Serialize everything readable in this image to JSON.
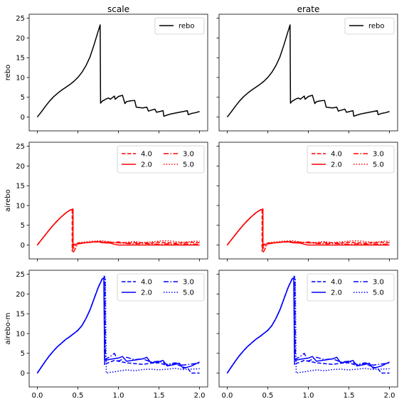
{
  "chart_data": {
    "type": "line",
    "column_titles": [
      "scale",
      "erate"
    ],
    "row_labels": [
      "rebo",
      "airebo",
      "airebo-m"
    ],
    "xlim": [
      -0.1,
      2.1
    ],
    "xticks": [
      0.0,
      0.5,
      1.0,
      1.5,
      2.0
    ],
    "xtick_labels": [
      "0.0",
      "0.5",
      "1.0",
      "1.5",
      "2.0"
    ],
    "ylim": [
      -3.5,
      26
    ],
    "yticks": [
      0,
      5,
      10,
      15,
      20,
      25
    ],
    "ytick_labels": [
      "0",
      "5",
      "10",
      "15",
      "20",
      "25"
    ],
    "grid": false,
    "legend_placement": "top-right",
    "colors": {
      "rebo": "#000000",
      "airebo": "#ff0000",
      "airebo-m": "#0000ff"
    },
    "rows": [
      {
        "label": "rebo",
        "color": "#000000",
        "legend_columns": 1,
        "series": [
          {
            "name": "rebo",
            "style": "solid",
            "x": [
              0.0,
              0.05,
              0.1,
              0.15,
              0.2,
              0.25,
              0.3,
              0.35,
              0.4,
              0.45,
              0.5,
              0.55,
              0.6,
              0.65,
              0.7,
              0.74,
              0.775,
              0.78,
              0.8,
              0.85,
              0.88,
              0.9,
              0.95,
              0.96,
              1.0,
              1.05,
              1.08,
              1.1,
              1.15,
              1.2,
              1.22,
              1.26,
              1.3,
              1.35,
              1.37,
              1.4,
              1.45,
              1.47,
              1.51,
              1.55,
              1.56,
              1.6,
              1.65,
              1.7,
              1.75,
              1.8,
              1.85,
              1.86,
              1.9,
              1.95,
              2.0
            ],
            "y": [
              0.0,
              1.3,
              2.7,
              4.0,
              5.1,
              6.0,
              6.8,
              7.5,
              8.2,
              9.0,
              10.0,
              11.3,
              13.0,
              15.2,
              18.3,
              21.0,
              23.3,
              3.5,
              4.0,
              4.6,
              4.8,
              4.5,
              5.3,
              4.5,
              5.2,
              5.5,
              3.4,
              3.9,
              4.1,
              4.2,
              2.5,
              2.4,
              2.3,
              2.5,
              1.5,
              1.7,
              2.0,
              1.2,
              1.4,
              1.6,
              0.2,
              0.5,
              0.8,
              1.0,
              1.2,
              1.4,
              1.6,
              0.6,
              0.9,
              1.1,
              1.4
            ]
          }
        ]
      },
      {
        "label": "airebo",
        "color": "#ff0000",
        "legend_columns": 2,
        "series": [
          {
            "name": "4.0",
            "style": "dashed",
            "x": [
              0.0,
              0.05,
              0.1,
              0.15,
              0.2,
              0.25,
              0.3,
              0.35,
              0.4,
              0.43,
              0.43,
              0.45,
              0.5,
              0.6,
              0.7,
              0.8,
              0.9,
              1.0,
              1.1,
              1.2,
              1.3,
              1.4,
              1.5,
              1.6,
              1.7,
              1.8,
              1.9,
              2.0
            ],
            "y": [
              0.0,
              1.3,
              2.6,
              3.9,
              5.1,
              6.2,
              7.2,
              8.1,
              8.8,
              9.1,
              -1.5,
              0.2,
              0.5,
              0.6,
              0.8,
              0.7,
              0.6,
              0.8,
              0.5,
              0.6,
              0.6,
              0.5,
              0.7,
              0.6,
              0.5,
              0.6,
              0.7,
              0.6
            ]
          },
          {
            "name": "2.0",
            "style": "solid",
            "x": [
              0.0,
              0.05,
              0.1,
              0.15,
              0.2,
              0.25,
              0.3,
              0.35,
              0.4,
              0.44,
              0.44,
              0.5,
              0.55,
              0.6,
              0.7,
              0.75,
              0.8,
              0.9,
              0.95,
              1.0,
              1.2,
              1.4,
              1.6,
              1.8,
              2.0
            ],
            "y": [
              0.0,
              1.3,
              2.6,
              3.9,
              5.1,
              6.2,
              7.2,
              8.1,
              8.8,
              9.1,
              0.0,
              0.3,
              0.5,
              0.6,
              0.8,
              0.9,
              0.6,
              0.5,
              0.2,
              0.0,
              0.0,
              0.0,
              0.0,
              0.0,
              0.0
            ]
          },
          {
            "name": "3.0",
            "style": "dashdot",
            "x": [
              0.0,
              0.05,
              0.1,
              0.15,
              0.2,
              0.25,
              0.3,
              0.35,
              0.4,
              0.44,
              0.44,
              0.5,
              0.6,
              0.7,
              0.8,
              0.9,
              1.0,
              1.1,
              1.2,
              1.3,
              1.4,
              1.5,
              1.6,
              1.7,
              1.8,
              1.9,
              2.0
            ],
            "y": [
              0.0,
              1.3,
              2.6,
              3.9,
              5.1,
              6.2,
              7.2,
              8.1,
              8.8,
              9.1,
              -2.0,
              0.3,
              0.6,
              0.8,
              0.9,
              0.7,
              0.6,
              0.4,
              0.3,
              0.4,
              0.3,
              0.2,
              0.3,
              0.2,
              0.3,
              0.2,
              0.2
            ]
          },
          {
            "name": "5.0",
            "style": "dotted",
            "x": [
              0.0,
              0.05,
              0.1,
              0.15,
              0.2,
              0.25,
              0.3,
              0.35,
              0.4,
              0.44,
              0.44,
              0.5,
              0.6,
              0.7,
              0.8,
              0.9,
              1.0,
              1.1,
              1.2,
              1.3,
              1.4,
              1.5,
              1.6,
              1.7,
              1.8,
              1.9,
              2.0
            ],
            "y": [
              0.0,
              1.3,
              2.6,
              3.9,
              5.1,
              6.2,
              7.2,
              8.1,
              8.8,
              9.1,
              -1.0,
              0.6,
              0.8,
              1.0,
              1.1,
              0.8,
              0.5,
              0.7,
              0.9,
              0.6,
              0.8,
              1.0,
              1.1,
              0.9,
              0.7,
              0.9,
              1.0
            ]
          }
        ]
      },
      {
        "label": "airebo-m",
        "color": "#0000ff",
        "legend_columns": 2,
        "series": [
          {
            "name": "4.0",
            "style": "dashed",
            "x": [
              0.0,
              0.05,
              0.1,
              0.15,
              0.2,
              0.25,
              0.3,
              0.35,
              0.4,
              0.45,
              0.5,
              0.55,
              0.6,
              0.65,
              0.7,
              0.75,
              0.8,
              0.825,
              0.83,
              0.85,
              0.9,
              0.95,
              1.0,
              1.1,
              1.2,
              1.3,
              1.4,
              1.5,
              1.6,
              1.7,
              1.8,
              1.85,
              1.9,
              2.0
            ],
            "y": [
              0.0,
              1.5,
              3.0,
              4.4,
              5.6,
              6.7,
              7.6,
              8.5,
              9.2,
              10.0,
              10.8,
              12.0,
              13.8,
              16.0,
              18.8,
              21.6,
              23.8,
              24.5,
              2.0,
              2.4,
              2.8,
              3.2,
              3.0,
              2.6,
              2.4,
              2.2,
              2.5,
              2.6,
              1.9,
              2.4,
              1.5,
              1.3,
              0.0,
              0.0
            ]
          },
          {
            "name": "2.0",
            "style": "solid",
            "x": [
              0.0,
              0.05,
              0.1,
              0.15,
              0.2,
              0.25,
              0.3,
              0.35,
              0.4,
              0.45,
              0.5,
              0.55,
              0.6,
              0.65,
              0.7,
              0.75,
              0.8,
              0.82,
              0.83,
              0.9,
              1.0,
              1.05,
              1.1,
              1.2,
              1.3,
              1.35,
              1.4,
              1.5,
              1.55,
              1.6,
              1.7,
              1.75,
              1.8,
              1.9,
              2.0
            ],
            "y": [
              0.0,
              1.5,
              3.0,
              4.4,
              5.6,
              6.7,
              7.6,
              8.5,
              9.2,
              10.0,
              10.8,
              12.0,
              13.8,
              16.0,
              18.8,
              21.6,
              23.8,
              24.0,
              3.2,
              3.5,
              3.8,
              4.2,
              3.0,
              3.3,
              3.6,
              4.0,
              2.6,
              2.9,
              3.2,
              1.8,
              2.2,
              2.5,
              1.2,
              1.8,
              2.8
            ]
          },
          {
            "name": "3.0",
            "style": "dashdot",
            "x": [
              0.0,
              0.05,
              0.1,
              0.15,
              0.2,
              0.25,
              0.3,
              0.35,
              0.4,
              0.45,
              0.5,
              0.55,
              0.6,
              0.65,
              0.7,
              0.75,
              0.8,
              0.835,
              0.84,
              0.9,
              0.95,
              1.0,
              1.1,
              1.2,
              1.3,
              1.4,
              1.5,
              1.6,
              1.7,
              1.8,
              1.9,
              2.0
            ],
            "y": [
              0.0,
              1.5,
              3.0,
              4.4,
              5.6,
              6.7,
              7.6,
              8.5,
              9.2,
              10.0,
              10.8,
              12.0,
              13.8,
              16.0,
              18.8,
              21.6,
              23.8,
              24.3,
              3.5,
              4.2,
              5.0,
              3.0,
              4.0,
              3.4,
              3.6,
              2.8,
              3.0,
              2.2,
              2.6,
              2.0,
              2.3,
              2.5
            ]
          },
          {
            "name": "5.0",
            "style": "dotted",
            "x": [
              0.0,
              0.05,
              0.1,
              0.15,
              0.2,
              0.25,
              0.3,
              0.35,
              0.4,
              0.45,
              0.5,
              0.55,
              0.6,
              0.65,
              0.7,
              0.75,
              0.8,
              0.84,
              0.85,
              0.9,
              0.95,
              1.0,
              1.1,
              1.2,
              1.3,
              1.4,
              1.5,
              1.6,
              1.7,
              1.8,
              1.9,
              2.0
            ],
            "y": [
              0.0,
              1.5,
              3.0,
              4.4,
              5.6,
              6.7,
              7.6,
              8.5,
              9.2,
              10.0,
              10.8,
              12.0,
              13.8,
              16.0,
              18.8,
              21.6,
              23.8,
              24.0,
              0.0,
              0.2,
              0.3,
              0.5,
              0.8,
              0.6,
              0.9,
              1.0,
              0.8,
              1.0,
              1.2,
              0.9,
              1.0,
              1.1
            ]
          }
        ]
      }
    ]
  }
}
